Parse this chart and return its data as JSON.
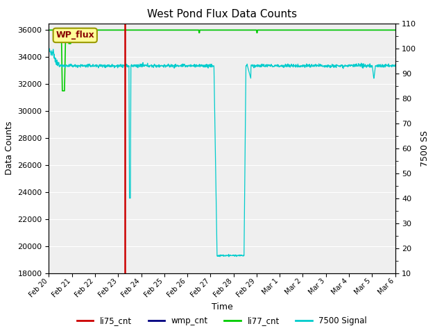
{
  "title": "West Pond Flux Data Counts",
  "xlabel": "Time",
  "ylabel_left": "Data Counts",
  "ylabel_right": "7500 SS",
  "ylim_left": [
    18000,
    36500
  ],
  "ylim_right": [
    10,
    110
  ],
  "yticks_left": [
    18000,
    20000,
    22000,
    24000,
    26000,
    28000,
    30000,
    32000,
    34000,
    36000
  ],
  "yticks_right": [
    10,
    20,
    30,
    40,
    50,
    60,
    70,
    80,
    90,
    100,
    110
  ],
  "background_color": "#ffffff",
  "plot_bg_color": "#e0e0e0",
  "annotation_text": "WP_flux",
  "annotation_bg": "#ffff99",
  "annotation_border": "#999900",
  "li75_color": "#cc0000",
  "wmp_color": "#000080",
  "li77_color": "#00cc00",
  "signal7500_color": "#00cccc",
  "legend_labels": [
    "li75_cnt",
    "wmp_cnt",
    "li77_cnt",
    "7500 Signal"
  ],
  "n_days": 15,
  "xtick_labels": [
    "Feb 20",
    "Feb 21",
    "Feb 22",
    "Feb 23",
    "Feb 24",
    "Feb 25",
    "Feb 26",
    "Feb 27",
    "Feb 28",
    "Feb 29",
    "Mar 1",
    "Mar 2",
    "Mar 3",
    "Mar 4",
    "Mar 5",
    "Mar 6"
  ]
}
